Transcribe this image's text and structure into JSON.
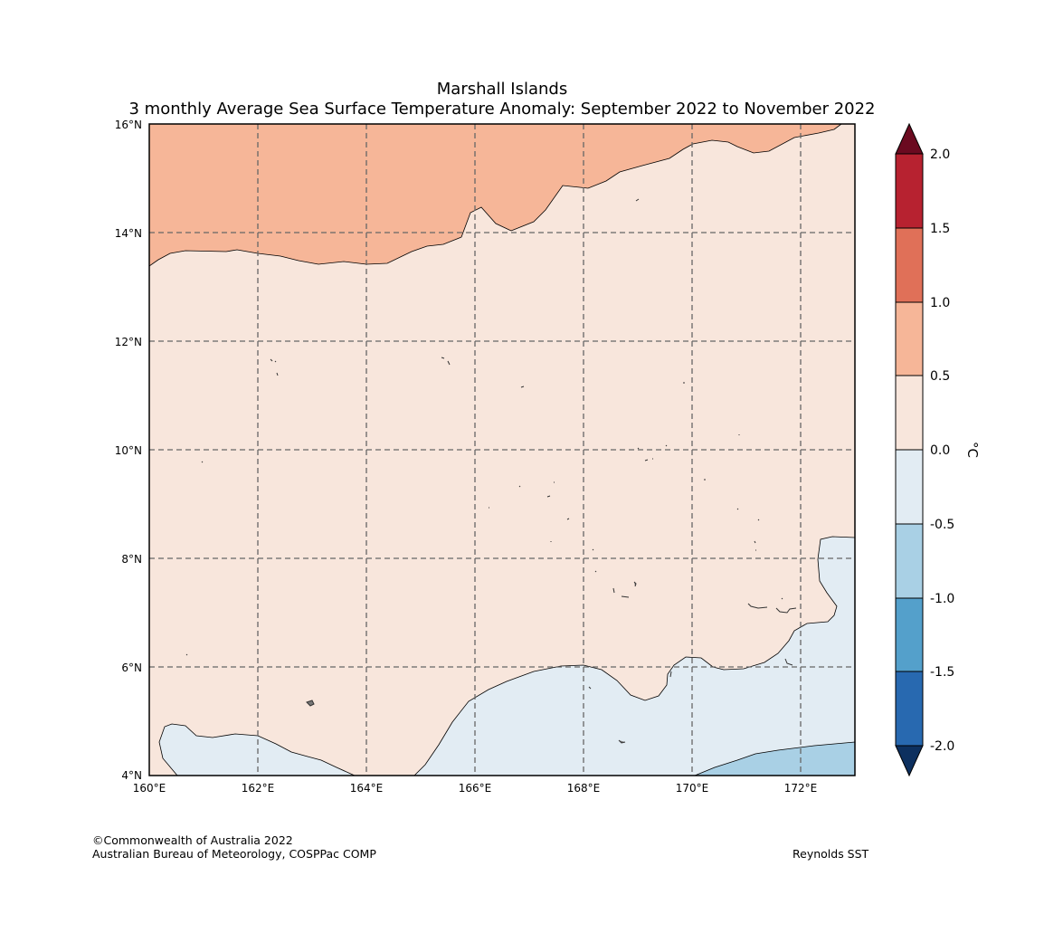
{
  "title": "Marshall Islands",
  "subtitle": "3 monthly Average Sea Surface Temperature Anomaly: September 2022 to November 2022",
  "map": {
    "lat_labels": [
      "16°N",
      "14°N",
      "12°N",
      "10°N",
      "8°N",
      "6°N",
      "4°N"
    ],
    "lon_labels": [
      "160°E",
      "162°E",
      "164°E",
      "166°E",
      "168°E",
      "170°E",
      "172°E"
    ],
    "lon_range": [
      160,
      173
    ],
    "lat_range": [
      4,
      16
    ]
  },
  "colorbar": {
    "unit": "°C",
    "ticks": [
      "2.0",
      "1.5",
      "1.0",
      "0.5",
      "0.0",
      "-0.5",
      "-1.0",
      "-1.5",
      "-2.0"
    ],
    "bins": [
      {
        "range": "1.5 to 2.0",
        "color": "#b72230"
      },
      {
        "range": "1.0 to 1.5",
        "color": "#e07058"
      },
      {
        "range": "0.5 to 1.0",
        "color": "#f6b698"
      },
      {
        "range": "0.0 to 0.5",
        "color": "#f8e6dc"
      },
      {
        "range": "-0.5 to 0.0",
        "color": "#e2ecf3"
      },
      {
        "range": "-1.0 to -0.5",
        "color": "#a9d0e5"
      },
      {
        "range": "-1.5 to -1.0",
        "color": "#54a0cb"
      },
      {
        "range": "-2.0 to -1.5",
        "color": "#2869b0"
      }
    ],
    "over_color": "#6b0a20",
    "under_color": "#0d305f"
  },
  "footer": {
    "copyright": "©Commonwealth of Australia 2022",
    "organisation": "Australian Bureau of Meteorology, COSPPac COMP",
    "source": "Reynolds SST"
  }
}
